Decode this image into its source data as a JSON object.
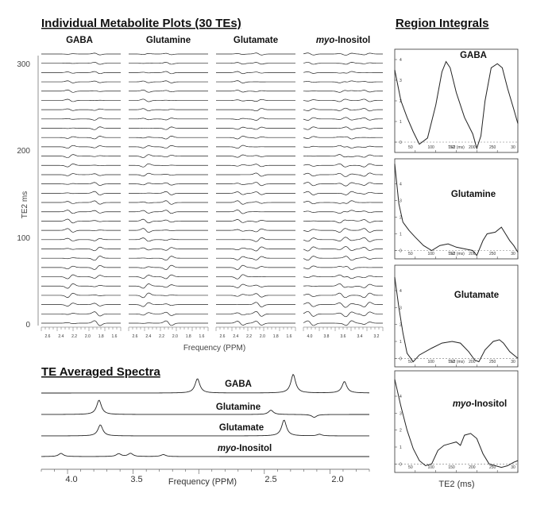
{
  "headings": {
    "individual": "Individual Metabolite Plots (30 TEs)",
    "integrals": "Region Integrals",
    "averaged": "TE Averaged Spectra"
  },
  "metabolites": [
    {
      "prefix": "",
      "italic": "",
      "rest": "GABA"
    },
    {
      "prefix": "",
      "italic": "",
      "rest": "Glutamine"
    },
    {
      "prefix": "",
      "italic": "",
      "rest": "Glutamate"
    },
    {
      "prefix": "",
      "italic": "myo",
      "rest": "-Inositol"
    }
  ],
  "stack_axis": {
    "ylabel": "TE2 ms",
    "yticks": [
      "0",
      "100",
      "200",
      "300"
    ],
    "xlabel": "Frequency (PPM)",
    "panel_ticks": [
      [
        "2.6",
        "2.4",
        "2.2",
        "2.0",
        "1.8",
        "1.6"
      ],
      [
        "2.6",
        "2.4",
        "2.2",
        "2.0",
        "1.8",
        "1.6"
      ],
      [
        "2.6",
        "2.4",
        "2.2",
        "2.0",
        "1.8",
        "1.6"
      ],
      [
        "4.0",
        "3.8",
        "3.6",
        "3.4",
        "3.2"
      ]
    ]
  },
  "averaged_axis": {
    "xlabel": "Frequency (PPM)",
    "xticks": [
      "4.0",
      "3.5",
      "2.5",
      "2.0"
    ]
  },
  "integrals_axis": {
    "xlabel": "TE2 (ms)",
    "xticks_small": [
      "50",
      "100",
      "150",
      "200",
      "250",
      "30"
    ],
    "ytick_small": [
      "0",
      "1",
      "2",
      "3",
      "4"
    ],
    "xlabel_small": "TE2 (ms)"
  },
  "chart_data": [
    {
      "type": "line",
      "name": "stacked-spectra",
      "title": "Individual Metabolite Plots (30 TEs)",
      "series": [
        {
          "name": "GABA",
          "ppm": [
            3.01,
            2.28,
            1.89
          ],
          "x_range": [
            2.7,
            1.55
          ]
        },
        {
          "name": "Glutamine",
          "ppm": [
            2.45,
            2.12
          ],
          "x_range": [
            2.7,
            1.55
          ]
        },
        {
          "name": "Glutamate",
          "ppm": [
            2.35,
            2.08
          ],
          "x_range": [
            2.7,
            1.55
          ]
        },
        {
          "name": "myo-Inositol",
          "ppm": [
            4.05,
            3.61,
            3.52,
            3.27
          ],
          "x_range": [
            4.15,
            3.05
          ]
        }
      ],
      "traces": 30,
      "ylabel": "TE2 ms",
      "ylim": [
        0,
        300
      ],
      "xlabel": "Frequency (PPM)"
    },
    {
      "type": "line",
      "name": "te-averaged-spectra",
      "title": "TE Averaged Spectra",
      "xlabel": "Frequency (PPM)",
      "xlim": [
        4.2,
        1.7
      ],
      "series": [
        {
          "name": "GABA",
          "peaks": [
            {
              "ppm": 3.01,
              "amp": 1.0
            },
            {
              "ppm": 2.28,
              "amp": 1.3
            },
            {
              "ppm": 1.89,
              "amp": 0.8
            }
          ]
        },
        {
          "name": "Glutamine",
          "peaks": [
            {
              "ppm": 3.76,
              "amp": 1.0
            },
            {
              "ppm": 2.45,
              "amp": 0.3
            },
            {
              "ppm": 2.12,
              "amp": -0.2
            }
          ]
        },
        {
          "name": "Glutamate",
          "peaks": [
            {
              "ppm": 3.75,
              "amp": 0.7
            },
            {
              "ppm": 2.35,
              "amp": 1.0
            },
            {
              "ppm": 2.08,
              "amp": 0.1
            }
          ]
        },
        {
          "name": "myo-Inositol",
          "peaks": [
            {
              "ppm": 4.05,
              "amp": 0.4
            },
            {
              "ppm": 3.61,
              "amp": 0.35
            },
            {
              "ppm": 3.52,
              "amp": 0.4
            },
            {
              "ppm": 3.27,
              "amp": 0.25
            }
          ]
        }
      ]
    },
    {
      "type": "line",
      "name": "region-integrals",
      "title": "Region Integrals",
      "xlabel": "TE2 (ms)",
      "xlim": [
        0,
        300
      ],
      "series": [
        {
          "name": "GABA",
          "x": [
            0,
            15,
            30,
            45,
            60,
            80,
            100,
            115,
            125,
            135,
            150,
            170,
            190,
            200,
            210,
            220,
            235,
            250,
            262,
            275,
            290,
            300
          ],
          "y": [
            3.5,
            2.0,
            1.2,
            0.5,
            -0.1,
            0.2,
            1.8,
            3.4,
            3.9,
            3.6,
            2.4,
            1.2,
            0.4,
            -0.3,
            0.3,
            2.0,
            3.6,
            3.8,
            3.6,
            2.6,
            1.6,
            0.9
          ],
          "ylim": [
            -0.5,
            4.5
          ]
        },
        {
          "name": "Glutamine",
          "x": [
            0,
            10,
            20,
            35,
            50,
            70,
            90,
            110,
            130,
            150,
            170,
            190,
            200,
            215,
            225,
            245,
            260,
            270,
            280,
            290,
            300
          ],
          "y": [
            5.2,
            2.8,
            1.7,
            1.2,
            0.8,
            0.3,
            0.0,
            0.3,
            0.4,
            0.2,
            0.1,
            0.0,
            -0.3,
            0.6,
            1.0,
            1.1,
            1.4,
            1.0,
            0.6,
            0.3,
            -0.1
          ],
          "ylim": [
            -0.5,
            5.5
          ]
        },
        {
          "name": "Glutamate",
          "x": [
            0,
            10,
            20,
            30,
            45,
            60,
            90,
            115,
            140,
            160,
            180,
            195,
            205,
            220,
            240,
            255,
            265,
            280,
            300
          ],
          "y": [
            4.8,
            3.0,
            1.5,
            0.3,
            -0.2,
            0.2,
            0.6,
            0.9,
            1.0,
            0.9,
            0.4,
            -0.1,
            -0.2,
            0.5,
            1.0,
            1.1,
            0.9,
            0.4,
            0.0
          ],
          "ylim": [
            -0.5,
            5.5
          ]
        },
        {
          "name": "myo-Inositol",
          "x": [
            0,
            15,
            30,
            45,
            60,
            75,
            90,
            105,
            120,
            135,
            150,
            160,
            170,
            185,
            200,
            215,
            230,
            245,
            260,
            275,
            290,
            300
          ],
          "y": [
            5.0,
            3.4,
            2.0,
            0.9,
            0.2,
            -0.1,
            0.0,
            0.8,
            1.1,
            1.2,
            1.3,
            1.1,
            1.7,
            1.8,
            1.5,
            0.6,
            0.0,
            -0.1,
            -0.2,
            -0.1,
            0.1,
            0.2
          ],
          "ylim": [
            -0.5,
            5.5
          ]
        }
      ]
    }
  ]
}
